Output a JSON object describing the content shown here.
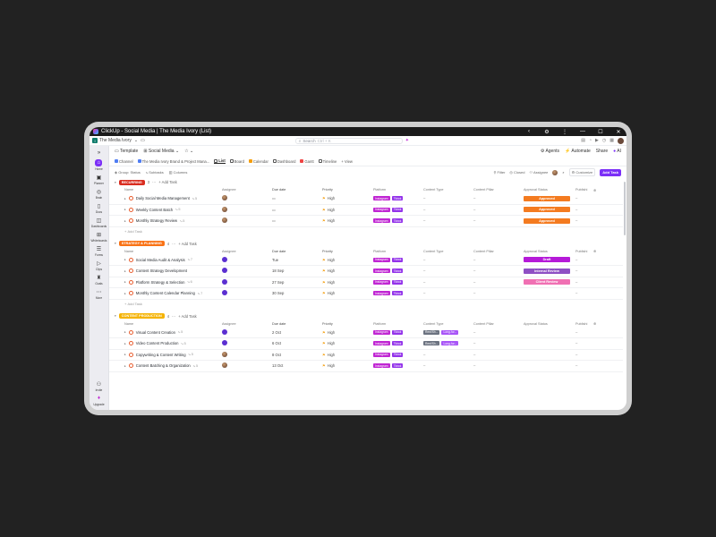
{
  "window": {
    "title": "ClickUp - Social Media | The Media Ivory (List)"
  },
  "topbar": {
    "workspace_initial": "I",
    "workspace": "The Media Ivory",
    "search_placeholder": "Search",
    "search_shortcut": "Ctrl + K"
  },
  "sidebar": {
    "items": [
      {
        "label": "Home",
        "icon": "home-icon"
      },
      {
        "label": "Planner",
        "icon": "planner-icon"
      },
      {
        "label": "Brain",
        "icon": "brain-icon"
      },
      {
        "label": "Docs",
        "icon": "docs-icon"
      },
      {
        "label": "Dashboards",
        "icon": "dashboard-icon"
      },
      {
        "label": "Whiteboards",
        "icon": "whiteboard-icon"
      },
      {
        "label": "Forms",
        "icon": "forms-icon"
      },
      {
        "label": "Clips",
        "icon": "clips-icon"
      },
      {
        "label": "Goals",
        "icon": "goals-icon"
      },
      {
        "label": "More",
        "icon": "more-icon"
      }
    ],
    "invite": "Invite",
    "upgrade": "Upgrade"
  },
  "breadcrumb": {
    "template": "Template",
    "space": "Social Media"
  },
  "header_actions": {
    "agents": "Agents",
    "automate": "Automate",
    "share": "Share",
    "ai": "AI"
  },
  "views": [
    {
      "label": "Channel",
      "color": "#4f7df3"
    },
    {
      "label": "The Media Ivory Brand & Project Mana...",
      "color": "#4f7df3"
    },
    {
      "label": "List",
      "color": "#555555"
    },
    {
      "label": "Board",
      "color": "#555555"
    },
    {
      "label": "Calendar",
      "color": "#f59e0b"
    },
    {
      "label": "Dashboard",
      "color": "#555555"
    },
    {
      "label": "Gantt",
      "color": "#ef4444"
    },
    {
      "label": "Timeline",
      "color": "#555555"
    },
    {
      "label": "+ View",
      "color": ""
    }
  ],
  "toolbar": {
    "group": "Group: Status",
    "subtasks": "Subtasks",
    "columns": "Columns",
    "filter": "Filter",
    "closed": "Closed",
    "assignee": "Assignee",
    "customize": "Customize",
    "add_task": "Add Task"
  },
  "columns": {
    "name": "Name",
    "assignee": "Assignee",
    "due": "Due date",
    "priority": "Priority",
    "platform": "Platform",
    "content_type": "Content Type",
    "content_pillar": "Content Pillar",
    "approval": "Approval Status",
    "publish": "Publishi"
  },
  "add_task_label": "+ Add Task",
  "add_task_row": "Add Task",
  "groups": [
    {
      "name": "RECURRING",
      "count": "3",
      "color": "#d92d20",
      "rows": [
        {
          "name": "Daily Social Media Management",
          "sub": "5",
          "assignee": "photo",
          "due": "",
          "priority": "High",
          "platforms": [
            "Instagram",
            "Tiktok"
          ],
          "ctype": [],
          "pillar": "–",
          "status": "Approved",
          "status_class": "st-approved",
          "pub": "–"
        },
        {
          "name": "Weekly Content Batch",
          "sub": "5",
          "assignee": "photo",
          "due": "",
          "priority": "High",
          "platforms": [
            "Instagram",
            "Tiktok"
          ],
          "ctype": [],
          "pillar": "–",
          "status": "Approved",
          "status_class": "st-approved",
          "pub": "–"
        },
        {
          "name": "Monthly Strategy Review",
          "sub": "5",
          "assignee": "photo",
          "due": "",
          "priority": "High",
          "platforms": [
            "Instagram",
            "Tiktok"
          ],
          "ctype": [],
          "pillar": "–",
          "status": "Approved",
          "status_class": "st-approved",
          "pub": "–"
        }
      ]
    },
    {
      "name": "STRATEGY & PLANNING",
      "count": "4",
      "color": "#f97316",
      "rows": [
        {
          "name": "Social Media Audit & Analysis",
          "sub": "7",
          "assignee": "purple",
          "due": "Tue",
          "priority": "High",
          "platforms": [
            "Instagram",
            "Tiktok"
          ],
          "ctype": [],
          "pillar": "–",
          "status": "Draft",
          "status_class": "st-draft",
          "pub": "–"
        },
        {
          "name": "Content Strategy Development",
          "sub": "",
          "assignee": "purple",
          "due": "18 Sep",
          "priority": "High",
          "platforms": [
            "Instagram",
            "Tiktok"
          ],
          "ctype": [],
          "pillar": "–",
          "status": "Internal Review",
          "status_class": "st-internal",
          "pub": "–"
        },
        {
          "name": "Platform Strategy & Selection",
          "sub": "6",
          "assignee": "purple",
          "due": "27 Sep",
          "priority": "High",
          "platforms": [
            "Instagram",
            "Tiktok"
          ],
          "ctype": [],
          "pillar": "–",
          "status": "Client Review",
          "status_class": "st-client",
          "pub": "–"
        },
        {
          "name": "Monthly Content Calendar Planning",
          "sub": "7",
          "assignee": "purple",
          "due": "30 Sep",
          "priority": "High",
          "platforms": [
            "Instagram",
            "Tiktok"
          ],
          "ctype": [],
          "pillar": "–",
          "status": "",
          "status_class": "",
          "pub": "–"
        }
      ]
    },
    {
      "name": "CONTENT PRODUCTION",
      "count": "4",
      "color": "#f5b301",
      "rows": [
        {
          "name": "Visual Content Creation",
          "sub": "5",
          "assignee": "purple",
          "due": "2 Oct",
          "priority": "High",
          "platforms": [
            "Instagram",
            "Tiktok"
          ],
          "ctype": [
            "Reel/Sh...",
            "Long-for..."
          ],
          "pillar": "–",
          "status": "",
          "status_class": "",
          "pub": "–"
        },
        {
          "name": "Video Content Production",
          "sub": "5",
          "assignee": "purple",
          "due": "6 Oct",
          "priority": "High",
          "platforms": [
            "Instagram",
            "Tiktok"
          ],
          "ctype": [
            "Reel/Sh...",
            "Long-for..."
          ],
          "pillar": "–",
          "status": "",
          "status_class": "",
          "pub": "–"
        },
        {
          "name": "Copywriting & Content Writing",
          "sub": "5",
          "assignee": "photo",
          "due": "8 Oct",
          "priority": "High",
          "platforms": [
            "Instagram",
            "Tiktok"
          ],
          "ctype": [],
          "pillar": "–",
          "status": "",
          "status_class": "",
          "pub": "–"
        },
        {
          "name": "Content Batching & Organization",
          "sub": "5",
          "assignee": "photo",
          "due": "13 Oct",
          "priority": "High",
          "platforms": [
            "Instagram",
            "Tiktok"
          ],
          "ctype": [],
          "pillar": "–",
          "status": "",
          "status_class": "",
          "pub": "–"
        }
      ]
    }
  ]
}
